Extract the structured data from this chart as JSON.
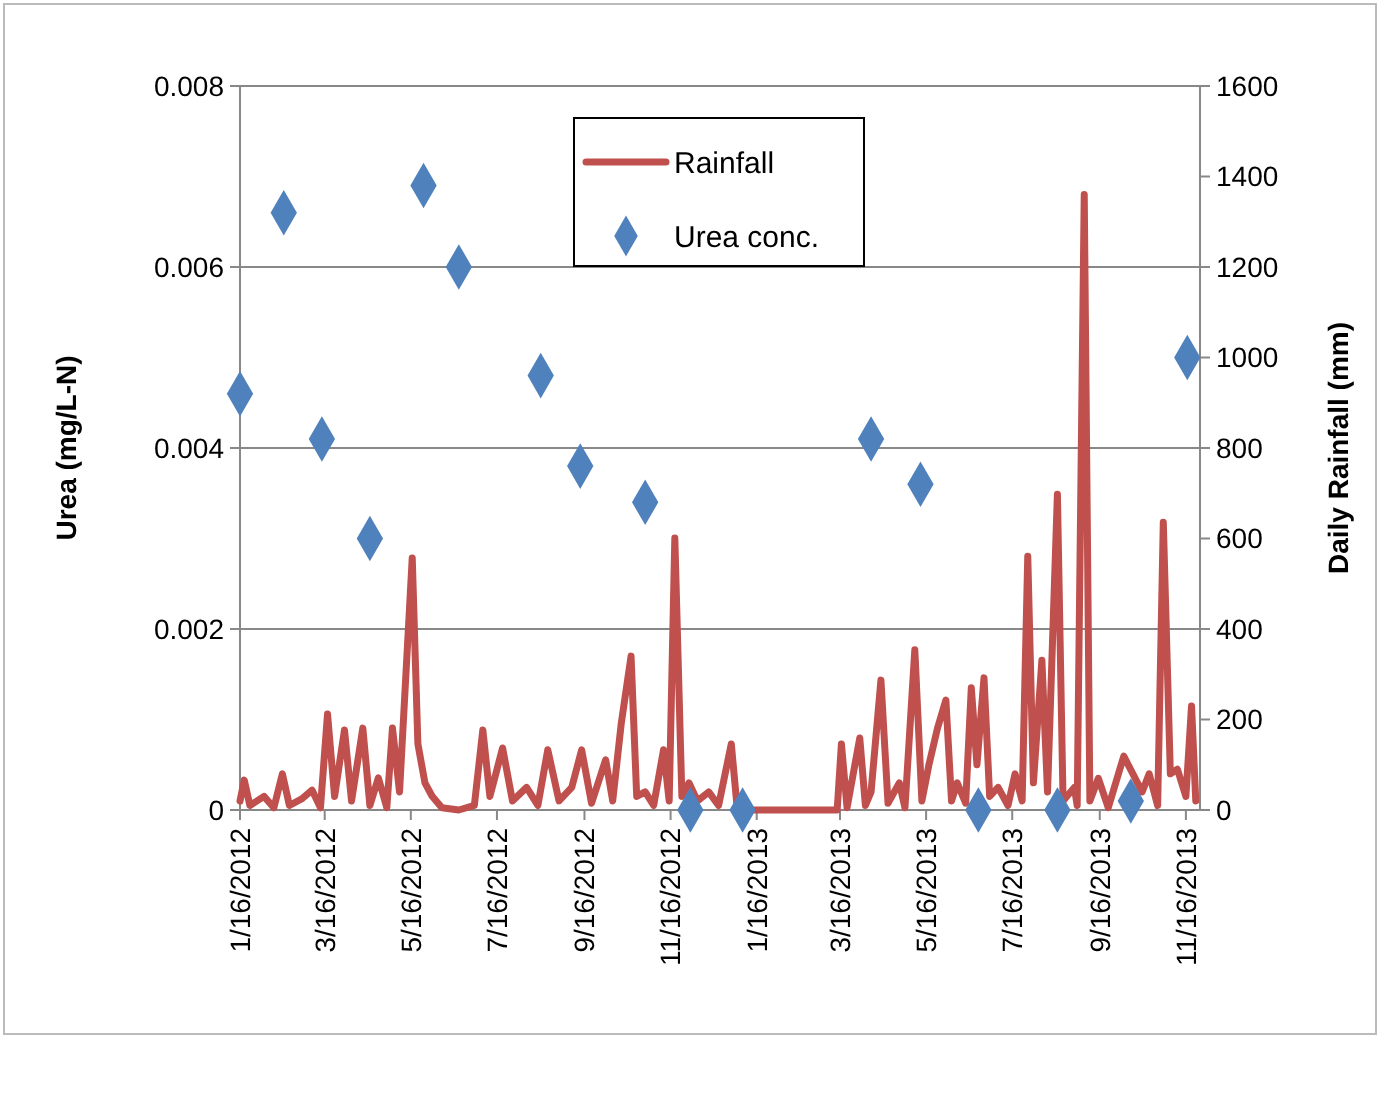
{
  "chart_data": {
    "type": "line",
    "ylabel": "Urea (mg/L-N)",
    "y2label": "Daily Rainfall (mm)",
    "xlim": [
      "2012-01-16",
      "2013-11-26"
    ],
    "xticks": [
      {
        "value": "2012-01-16",
        "label": "1/16/2012"
      },
      {
        "value": "2012-03-16",
        "label": "3/16/2012"
      },
      {
        "value": "2012-05-16",
        "label": "5/16/2012"
      },
      {
        "value": "2012-07-16",
        "label": "7/16/2012"
      },
      {
        "value": "2012-09-16",
        "label": "9/16/2012"
      },
      {
        "value": "2012-11-16",
        "label": "11/16/2012"
      },
      {
        "value": "2013-01-16",
        "label": "1/16/2013"
      },
      {
        "value": "2013-03-16",
        "label": "3/16/2013"
      },
      {
        "value": "2013-05-16",
        "label": "5/16/2013"
      },
      {
        "value": "2013-07-16",
        "label": "7/16/2013"
      },
      {
        "value": "2013-09-16",
        "label": "9/16/2013"
      },
      {
        "value": "2013-11-16",
        "label": "11/16/2013"
      }
    ],
    "ylim": [
      0,
      0.008
    ],
    "yticks": [
      {
        "value": 0,
        "label": "0"
      },
      0.002,
      0.004,
      0.006,
      0.008
    ],
    "y2lim": [
      0,
      1600
    ],
    "y2ticks": [
      0,
      200,
      400,
      600,
      800,
      1000,
      1200,
      1400,
      1600
    ],
    "grid": "y",
    "legend": "top",
    "series": [
      {
        "name": "Rainfall",
        "axis": "y2",
        "color": "#c0504d",
        "marker": "none",
        "line_style": "solid",
        "x": [
          "2012-01-16",
          "2012-01-19",
          "2012-01-23",
          "2012-02-02",
          "2012-02-09",
          "2012-02-15",
          "2012-02-20",
          "2012-02-29",
          "2012-03-07",
          "2012-03-13",
          "2012-03-18",
          "2012-03-23",
          "2012-03-30",
          "2012-04-04",
          "2012-04-12",
          "2012-04-17",
          "2012-04-23",
          "2012-04-29",
          "2012-05-03",
          "2012-05-08",
          "2012-05-17",
          "2012-05-21",
          "2012-05-26",
          "2012-05-31",
          "2012-06-07",
          "2012-06-19",
          "2012-06-30",
          "2012-07-06",
          "2012-07-11",
          "2012-07-20",
          "2012-07-27",
          "2012-08-06",
          "2012-08-14",
          "2012-08-21",
          "2012-08-29",
          "2012-09-07",
          "2012-09-14",
          "2012-09-21",
          "2012-10-01",
          "2012-10-06",
          "2012-10-12",
          "2012-10-19",
          "2012-10-23",
          "2012-10-29",
          "2012-11-04",
          "2012-11-11",
          "2012-11-15",
          "2012-11-19",
          "2012-11-24",
          "2012-11-29",
          "2012-12-05",
          "2012-12-13",
          "2012-12-20",
          "2012-12-29",
          "2013-01-02",
          "2013-01-08",
          "2013-01-12",
          "2013-03-14",
          "2013-03-17",
          "2013-03-21",
          "2013-03-30",
          "2013-04-03",
          "2013-04-07",
          "2013-04-14",
          "2013-04-19",
          "2013-04-27",
          "2013-05-01",
          "2013-05-08",
          "2013-05-13",
          "2013-05-18",
          "2013-05-24",
          "2013-05-30",
          "2013-06-03",
          "2013-06-07",
          "2013-06-13",
          "2013-06-17",
          "2013-06-21",
          "2013-06-26",
          "2013-06-30",
          "2013-07-06",
          "2013-07-13",
          "2013-07-18",
          "2013-07-23",
          "2013-07-27",
          "2013-07-31",
          "2013-08-06",
          "2013-08-10",
          "2013-08-17",
          "2013-08-21",
          "2013-08-29",
          "2013-08-31",
          "2013-09-05",
          "2013-09-09",
          "2013-09-15",
          "2013-09-22",
          "2013-10-03",
          "2013-10-16",
          "2013-10-21",
          "2013-10-27",
          "2013-10-31",
          "2013-11-05",
          "2013-11-10",
          "2013-11-16",
          "2013-11-20",
          "2013-11-23"
        ],
        "values": [
          20,
          66,
          10,
          30,
          5,
          80,
          10,
          25,
          44,
          5,
          212,
          30,
          177,
          20,
          181,
          10,
          71,
          5,
          181,
          40,
          557,
          146,
          60,
          31,
          5,
          0,
          10,
          177,
          30,
          137,
          20,
          50,
          10,
          133,
          20,
          50,
          133,
          15,
          111,
          20,
          190,
          340,
          30,
          40,
          10,
          133,
          20,
          601,
          30,
          60,
          20,
          40,
          10,
          146,
          10,
          20,
          0,
          0,
          146,
          5,
          159,
          10,
          40,
          287,
          15,
          60,
          5,
          354,
          20,
          100,
          180,
          243,
          20,
          60,
          15,
          270,
          100,
          292,
          30,
          50,
          10,
          80,
          20,
          561,
          60,
          331,
          40,
          698,
          20,
          50,
          10,
          1360,
          20,
          70,
          5,
          119,
          40,
          80,
          10,
          636,
          80,
          90,
          30,
          230,
          20
        ]
      },
      {
        "name": "Urea conc.",
        "type": "scatter",
        "axis": "y",
        "color": "#4f81bd",
        "marker": "diamond",
        "x": [
          "2012-01-16",
          "2012-02-16",
          "2012-03-14",
          "2012-04-17",
          "2012-05-25",
          "2012-06-19",
          "2012-08-16",
          "2012-09-13",
          "2012-10-29",
          "2012-11-30",
          "2013-01-06",
          "2013-04-07",
          "2013-05-12",
          "2013-06-22",
          "2013-08-17",
          "2013-10-08",
          "2013-11-17"
        ],
        "values": [
          0.0046,
          0.0066,
          0.0041,
          0.003,
          0.0069,
          0.006,
          0.0048,
          0.0038,
          0.0034,
          0,
          0,
          0.0041,
          0.0036,
          0,
          0,
          0.0001,
          0.005
        ]
      }
    ]
  }
}
